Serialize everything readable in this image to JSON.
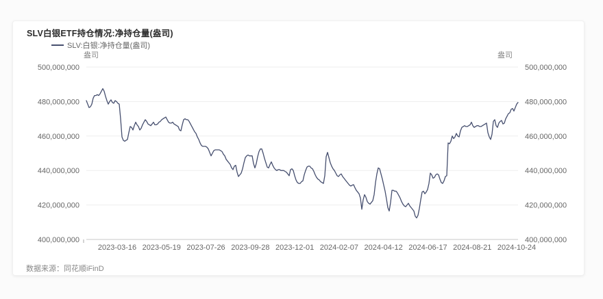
{
  "header": {
    "title": "SLV白银ETF持仓情况:净持仓量(盎司)"
  },
  "legend": {
    "series_label": "SLV:白银:净持仓量(盎司)",
    "marker_color": "#454e6e"
  },
  "footer": {
    "source": "数据来源：同花顺iFinD"
  },
  "chart_data": {
    "type": "line",
    "title": "SLV白银ETF持仓情况:净持仓量(盎司)",
    "ylabel_left": "盎司",
    "ylabel_right": "盎司",
    "legend_position": "top-left",
    "grid": "horizontal-only",
    "ylim": [
      400000000,
      500000000
    ],
    "y_ticks": [
      400000000,
      420000000,
      440000000,
      460000000,
      480000000,
      500000000
    ],
    "y_tick_labels": [
      "400,000,000",
      "420,000,000",
      "440,000,000",
      "460,000,000",
      "480,000,000",
      "500,000,000"
    ],
    "x_tick_labels": [
      "2023-03-16",
      "2023-05-19",
      "2023-07-26",
      "2023-09-28",
      "2023-12-01",
      "2024-02-07",
      "2024-04-12",
      "2024-06-17",
      "2024-08-21",
      "2024-10-24"
    ],
    "x_range": [
      "2023-01",
      "2024-10-24"
    ],
    "colors": {
      "line": "#454e6e",
      "grid": "#eeeeee",
      "axis": "#c9c9c9",
      "tick_text": "#666666"
    },
    "series": [
      {
        "name": "SLV:白银:净持仓量(盎司)",
        "color": "#454e6e",
        "unit": "百万盎司",
        "values_million_oz": [
          480.5,
          478.5,
          476.5,
          477,
          478.5,
          482,
          483.5,
          483.5,
          484,
          483.5,
          484.5,
          486,
          487.5,
          486,
          483,
          480.5,
          478.5,
          480,
          481,
          479.5,
          479,
          480.5,
          480,
          479,
          478.5,
          470,
          459.5,
          457.5,
          457,
          457.5,
          458,
          462,
          465.5,
          465,
          463.5,
          466,
          468,
          466.5,
          465.5,
          463.5,
          464.5,
          466.5,
          468,
          469.5,
          468.5,
          467,
          466.5,
          466,
          467,
          468,
          466.5,
          466.5,
          467,
          468,
          468.5,
          469.5,
          470,
          470.5,
          471,
          469.5,
          468,
          467.5,
          467.5,
          468,
          467,
          466.5,
          466,
          465.5,
          463.5,
          463,
          466.5,
          469.5,
          470,
          469.5,
          469.5,
          468.5,
          467,
          465.5,
          464,
          462.5,
          461.5,
          459.5,
          458,
          456,
          454.5,
          454,
          454,
          454,
          453.5,
          452.5,
          450.5,
          448.5,
          450,
          451.5,
          452,
          452,
          452,
          452,
          451.5,
          451,
          449.5,
          448.5,
          446.5,
          445.5,
          444.5,
          443.5,
          441.5,
          440.5,
          442.5,
          443,
          439,
          436.5,
          437.5,
          438.5,
          441,
          444.5,
          447.5,
          448.5,
          449,
          448.5,
          448.5,
          448.5,
          444,
          441.5,
          444,
          448,
          451,
          452.5,
          452.5,
          450,
          447,
          444.5,
          442,
          441.5,
          443.5,
          445,
          443,
          441.5,
          440.5,
          440,
          440.5,
          440.5,
          440,
          440,
          440,
          439.5,
          439,
          438,
          437,
          440.5,
          441,
          440,
          437,
          434.5,
          433,
          432.5,
          432.5,
          433.5,
          434,
          437.5,
          440,
          442,
          442.5,
          442.5,
          441.5,
          441,
          439.5,
          437.5,
          436,
          435,
          434.5,
          433.5,
          433,
          432.5,
          437,
          448,
          450.5,
          447.5,
          444.5,
          442.5,
          441,
          440,
          438.5,
          437,
          436.5,
          437.5,
          438,
          436.5,
          435.5,
          434.5,
          433.5,
          432.5,
          431.5,
          431,
          431.5,
          431.8,
          430,
          428.5,
          427.5,
          426.5,
          424,
          417.5,
          423,
          426,
          424.5,
          422,
          421,
          420.5,
          421.5,
          422.5,
          426,
          433,
          438,
          441.5,
          441,
          438,
          435,
          431.5,
          428,
          423.5,
          418.5,
          416.5,
          421.5,
          428.5,
          428.5,
          428,
          428,
          427,
          425.5,
          424,
          422,
          420.5,
          419.5,
          419,
          420,
          421,
          419.5,
          418.5,
          417.5,
          416.5,
          413.5,
          412.5,
          414,
          418,
          423,
          427.5,
          428,
          426.5,
          427.5,
          429,
          432.5,
          438.5,
          437.5,
          435.5,
          436,
          437.5,
          438,
          437.5,
          435,
          433,
          432.5,
          434,
          436.5,
          437,
          456,
          455.5,
          457,
          460,
          458.5,
          459.5,
          461.5,
          460,
          459.5,
          463,
          465,
          465.5,
          466,
          465.5,
          465.5,
          466,
          466.5,
          468,
          466,
          465,
          465.5,
          466,
          466,
          465.5,
          465.5,
          466,
          466.5,
          467,
          467.5,
          462,
          459.5,
          458,
          461,
          468.5,
          469.5,
          466,
          465,
          467.5,
          468.5,
          469,
          467,
          467.5,
          470,
          471.5,
          473,
          473.5,
          475.5,
          476,
          474.5,
          476.5,
          478.5,
          479.5
        ]
      }
    ]
  }
}
